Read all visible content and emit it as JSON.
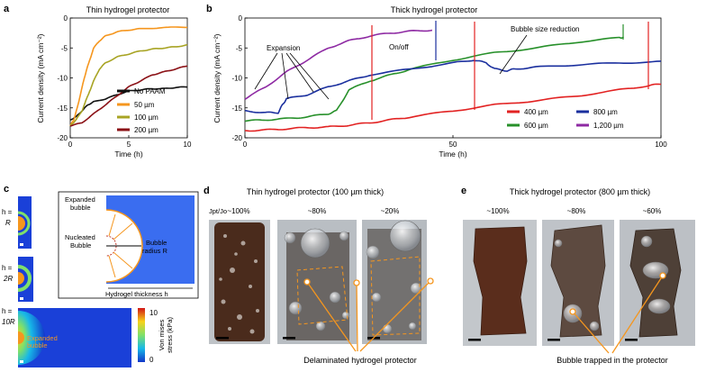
{
  "panel_a": {
    "label": "a",
    "title": "Thin hydrogel protector",
    "legend": [
      {
        "name": "No PAAM",
        "color": "#111111"
      },
      {
        "name": "50 µm",
        "color": "#f5961e"
      },
      {
        "name": "100 µm",
        "color": "#a8a424"
      },
      {
        "name": "200 µm",
        "color": "#8b1116"
      }
    ]
  },
  "panel_b": {
    "label": "b",
    "title": "Thick hydrogel protector",
    "annotations": {
      "expansion": "Expansion",
      "onoff": "On/off",
      "bubble": "Bubble size reduction"
    },
    "legend": [
      {
        "name": "400 µm",
        "color": "#e22222"
      },
      {
        "name": "800 µm",
        "color": "#1a2f9e"
      },
      {
        "name": "600 µm",
        "color": "#27902a"
      },
      {
        "name": "1,200 µm",
        "color": "#8e2aa3"
      }
    ]
  },
  "panel_c": {
    "label": "c",
    "rows": [
      {
        "h": "h =",
        "v": "R"
      },
      {
        "h": "h =",
        "v": "2R"
      },
      {
        "h": "h =",
        "v": "10R"
      }
    ],
    "expanded": [
      "Expanded",
      "bubble"
    ],
    "nucleated": [
      "Nucleated",
      "Bubble"
    ],
    "radius": [
      "Bubble",
      "radius R"
    ],
    "thickness": "Hydrogel thickness h",
    "expanded_small": [
      "Expanded",
      "bubble"
    ],
    "colorbar": {
      "max": "10",
      "min": "0",
      "label": [
        "Von mises",
        "stress (kPa)"
      ]
    }
  },
  "panel_d": {
    "label": "d",
    "title": "Thin hydrogel protector (100 µm thick)",
    "ratio": "Jpt/Jo",
    "percents": [
      "~100%",
      "~80%",
      "~20%"
    ],
    "caption": "Delaminated hydrogel protector"
  },
  "panel_e": {
    "label": "e",
    "title": "Thick hydrogel protector (800 µm thick)",
    "percents": [
      "~100%",
      "~80%",
      "~60%"
    ],
    "caption": "Bubble trapped in the protector"
  },
  "chart_data": [
    {
      "type": "line",
      "title": "Thin hydrogel protector",
      "xlabel": "Time (h)",
      "ylabel": "Current density (mA cm⁻²)",
      "xlim": [
        0,
        10
      ],
      "ylim": [
        -20,
        0
      ],
      "xticks": [
        "0",
        "5",
        "10"
      ],
      "yticks": [
        "0",
        "-5",
        "-10",
        "-15",
        "-20"
      ],
      "series": [
        {
          "name": "No PAAM",
          "color": "#111111",
          "x": [
            0,
            0.5,
            1,
            1.5,
            2,
            3,
            4,
            5,
            6,
            7,
            8,
            9,
            10
          ],
          "y": [
            -17,
            -16.5,
            -15.5,
            -14.5,
            -14,
            -13.5,
            -12.8,
            -12.2,
            -12,
            -11.8,
            -11.8,
            -11.6,
            -11.5
          ]
        },
        {
          "name": "50 µm",
          "color": "#f5961e",
          "x": [
            0,
            0.3,
            0.6,
            0.9,
            1.2,
            1.5,
            2,
            2.5,
            3,
            4,
            5,
            6,
            8,
            10
          ],
          "y": [
            -18,
            -17,
            -15,
            -12.5,
            -10,
            -8,
            -5,
            -3.8,
            -3,
            -2.3,
            -2,
            -1.8,
            -1.6,
            -1.5
          ]
        },
        {
          "name": "100 µm",
          "color": "#a8a424",
          "x": [
            0,
            0.5,
            1,
            1.5,
            2,
            2.5,
            3,
            4,
            5,
            6,
            7,
            8,
            9,
            10
          ],
          "y": [
            -18,
            -17,
            -15.5,
            -13,
            -10.5,
            -8.5,
            -7.5,
            -6.5,
            -6,
            -5.5,
            -5.2,
            -5,
            -4.8,
            -4.5
          ]
        },
        {
          "name": "200 µm",
          "color": "#8b1116",
          "x": [
            0,
            1,
            2,
            3,
            4,
            5,
            6,
            7,
            8,
            9,
            10
          ],
          "y": [
            -18,
            -17.5,
            -16,
            -14.5,
            -13,
            -11.5,
            -10.5,
            -9.5,
            -9,
            -8.5,
            -8
          ]
        }
      ]
    },
    {
      "type": "line",
      "title": "Thick hydrogel protector",
      "xlabel": "Time (h)",
      "ylabel": "Current density (mA cm⁻²)",
      "xlim": [
        0,
        100
      ],
      "ylim": [
        -20,
        0
      ],
      "xticks": [
        "0",
        "50",
        "100"
      ],
      "yticks": [
        "0",
        "-5",
        "-10",
        "-15",
        "-20"
      ],
      "series": [
        {
          "name": "400 µm",
          "color": "#e22222",
          "x": [
            0,
            5,
            10,
            15,
            20,
            25,
            30,
            35,
            40,
            50,
            60,
            70,
            80,
            90,
            97,
            100
          ],
          "y": [
            -18.8,
            -18.7,
            -18.5,
            -18.3,
            -18.2,
            -17.9,
            -17.5,
            -17,
            -16.5,
            -15.5,
            -14.5,
            -13.8,
            -13,
            -12,
            -11.3,
            -11
          ]
        },
        {
          "name": "600 µm",
          "color": "#27902a",
          "x": [
            0,
            5,
            10,
            15,
            20,
            22,
            25,
            30,
            35,
            40,
            50,
            60,
            70,
            80,
            90,
            91
          ],
          "y": [
            -17.2,
            -17,
            -16.8,
            -16.5,
            -16,
            -15.5,
            -12,
            -10.5,
            -9.5,
            -8.5,
            -7,
            -5.8,
            -5,
            -4,
            -3.3,
            -3.2
          ]
        },
        {
          "name": "800 µm",
          "color": "#1a2f9e",
          "x": [
            0,
            5,
            8,
            9,
            10,
            15,
            20,
            25,
            30,
            40,
            50,
            55,
            58,
            60,
            63,
            65,
            70,
            80,
            90,
            100
          ],
          "y": [
            -15.5,
            -15.8,
            -15.8,
            -14.5,
            -13.5,
            -12.8,
            -11.5,
            -10.5,
            -9.5,
            -8.5,
            -7.5,
            -7,
            -7.5,
            -8.5,
            -8.8,
            -8.5,
            -8.2,
            -7.8,
            -7.5,
            -7.3
          ]
        },
        {
          "name": "1,200 µm",
          "color": "#8e2aa3",
          "x": [
            0,
            5,
            10,
            15,
            20,
            25,
            30,
            35,
            40,
            45
          ],
          "y": [
            -13.5,
            -11.5,
            -9,
            -7,
            -5,
            -3.8,
            -3,
            -2.5,
            -2.2,
            -2
          ]
        }
      ]
    }
  ]
}
